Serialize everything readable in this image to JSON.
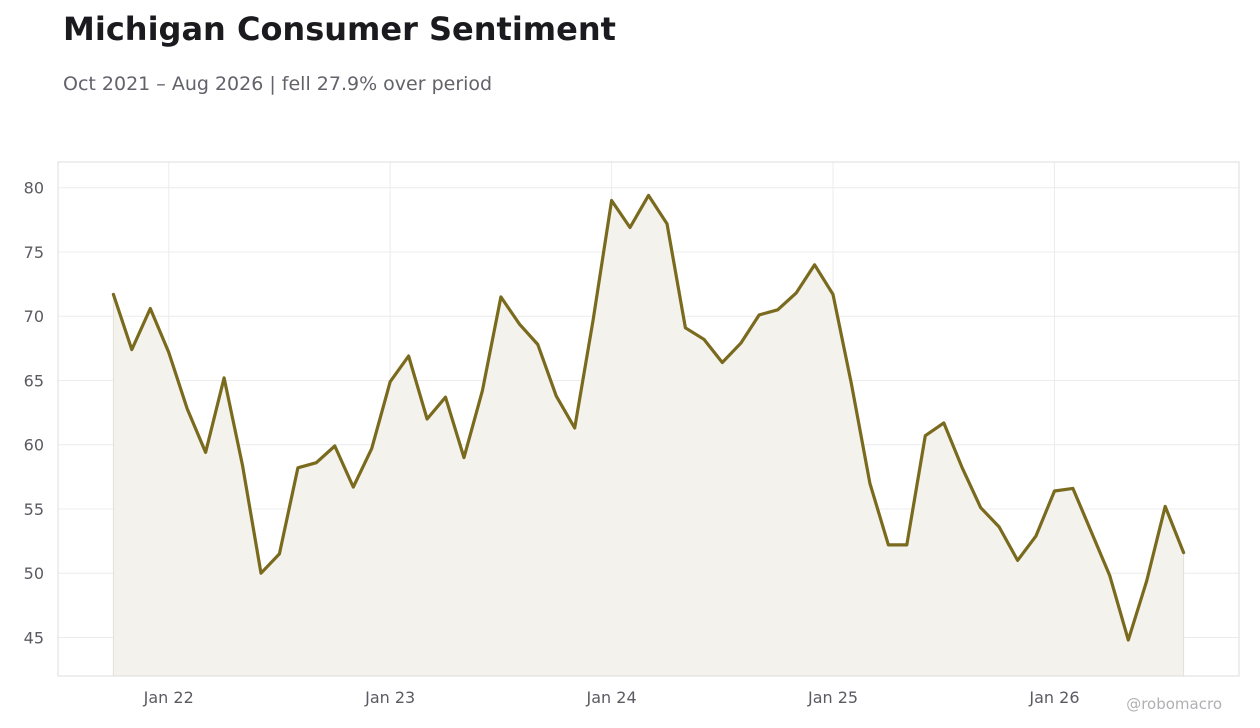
{
  "title": "Michigan Consumer Sentiment",
  "subtitle": "Oct 2021 – Aug 2026 | fell 27.9% over period",
  "credit": "@robomacro",
  "colors": {
    "line": "#7a6a1e",
    "fill": "#f3f2ed",
    "grid": "#ececec",
    "frame": "#dddddd"
  },
  "chart_data": {
    "type": "area",
    "x_start": "2021-10",
    "x_interval": "month",
    "ylim": [
      42,
      82
    ],
    "xlim": [
      "2021-07",
      "2026-11"
    ],
    "yticks": [
      45,
      50,
      55,
      60,
      65,
      70,
      75,
      80
    ],
    "xticks": [
      {
        "label": "Jan 22",
        "date": "2022-01"
      },
      {
        "label": "Jan 23",
        "date": "2023-01"
      },
      {
        "label": "Jan 24",
        "date": "2024-01"
      },
      {
        "label": "Jan 25",
        "date": "2025-01"
      },
      {
        "label": "Jan 26",
        "date": "2026-01"
      }
    ],
    "grid": true,
    "series": [
      {
        "values": [
          71.7,
          67.4,
          70.6,
          67.2,
          62.8,
          59.4,
          65.2,
          58.4,
          50.0,
          51.5,
          58.2,
          58.6,
          59.9,
          56.7,
          59.7,
          64.9,
          66.9,
          62.0,
          63.7,
          59.0,
          64.2,
          71.5,
          69.4,
          67.8,
          63.8,
          61.3,
          69.7,
          79.0,
          76.9,
          79.4,
          77.2,
          69.1,
          68.2,
          66.4,
          67.9,
          70.1,
          70.5,
          71.8,
          74.0,
          71.7,
          64.7,
          57.0,
          52.2,
          52.2,
          60.7,
          61.7,
          58.2,
          55.1,
          53.6,
          51.0,
          52.9,
          56.4,
          56.6,
          53.2,
          49.8,
          44.8,
          49.4,
          55.2,
          51.6
        ]
      }
    ]
  }
}
